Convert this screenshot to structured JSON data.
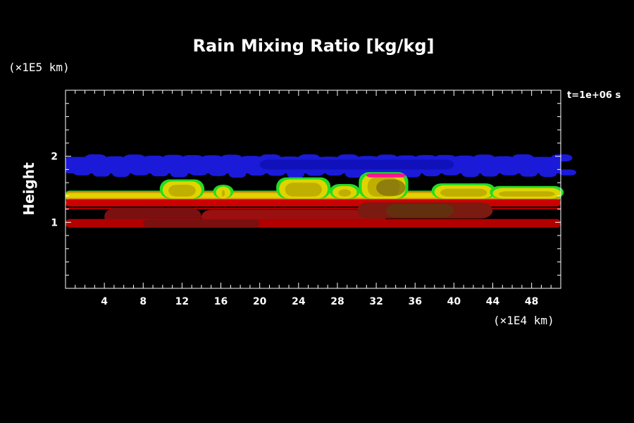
{
  "chart_data": {
    "type": "heatmap",
    "title": "Rain Mixing Ratio [kg/kg]",
    "ylabel": "Height",
    "y_unit": "(×1E5 km)",
    "x_unit": "(×1E4 km)",
    "time_label": "t=1e+06 s",
    "xlim": [
      0,
      51
    ],
    "ylim": [
      0,
      3
    ],
    "x_ticks": [
      4,
      8,
      12,
      16,
      20,
      24,
      28,
      32,
      36,
      40,
      44,
      48
    ],
    "y_ticks": [
      1,
      2
    ],
    "grid": false,
    "colors": {
      "background": "#000000",
      "blue_band": "#1a1ad8",
      "yellow_band": "#e0d400",
      "green_edge": "#22dd22",
      "red_band": "#b00000",
      "magenta_edge": "#ff1493"
    },
    "layers": [
      {
        "label": "blue",
        "y_bottom": 1.72,
        "y_top": 2.02,
        "x_start": 0,
        "x_end": 51
      },
      {
        "label": "yellow-green",
        "y_bottom": 1.34,
        "y_top": 1.68,
        "x_start": 0,
        "x_end": 51
      },
      {
        "label": "red upper",
        "y_bottom": 1.1,
        "y_top": 1.35,
        "x_start": 0,
        "x_end": 51
      },
      {
        "label": "red lower",
        "y_bottom": 0.92,
        "y_top": 1.05,
        "x_start": 0,
        "x_end": 51
      }
    ]
  }
}
